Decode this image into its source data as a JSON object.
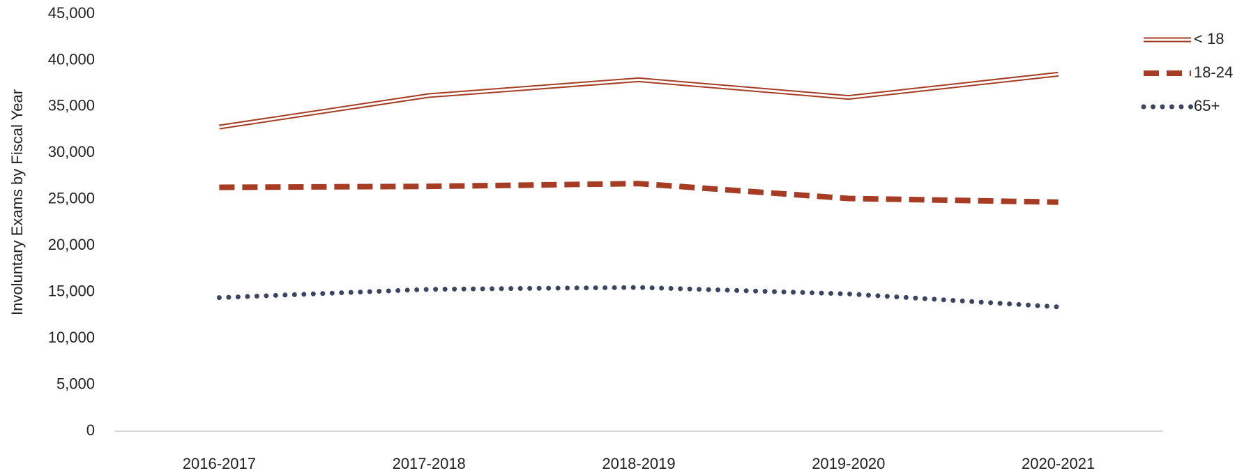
{
  "chart_data": {
    "type": "line",
    "y_label": "Involuntary Exams by Fiscal Year",
    "categories": [
      "2016-2017",
      "2017-2018",
      "2018-2019",
      "2019-2020",
      "2020-2021"
    ],
    "series": [
      {
        "name": "< 18",
        "color": "#a63c24",
        "style": "double",
        "values": [
          32800,
          36200,
          37900,
          36000,
          38500
        ]
      },
      {
        "name": "18-24",
        "color": "#a63c24",
        "style": "dashed",
        "values": [
          26300,
          26400,
          26700,
          25100,
          24700
        ]
      },
      {
        "name": "65+",
        "color": "#3b4560",
        "style": "dotted",
        "values": [
          14400,
          15300,
          15500,
          14800,
          13400
        ]
      }
    ],
    "ylim": [
      0,
      45000
    ],
    "yticks": [
      0,
      {
        "value": 5000,
        "label": "5,000"
      },
      {
        "value": 10000,
        "label": "10,000"
      },
      {
        "value": 15000,
        "label": "15,000"
      },
      {
        "value": 20000,
        "label": "20,000"
      },
      {
        "value": 25000,
        "label": "25,000"
      },
      {
        "value": 30000,
        "label": "30,000"
      },
      {
        "value": 35000,
        "label": "35,000"
      },
      {
        "value": 40000,
        "label": "40,000"
      },
      {
        "value": 45000,
        "label": "45,000"
      }
    ],
    "grid": false,
    "legend": "upper right"
  }
}
